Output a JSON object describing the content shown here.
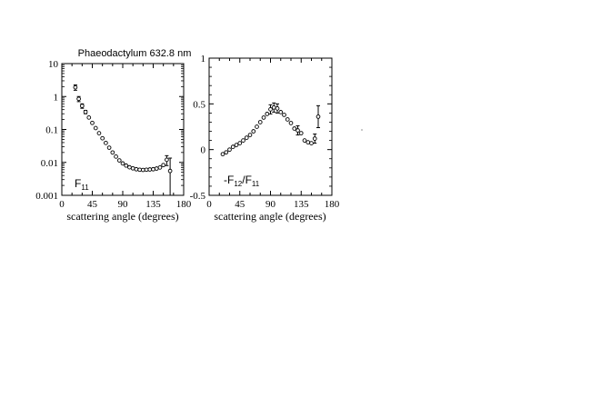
{
  "figure_title": "Phaeodactylum  632.8 nm",
  "chart_data": [
    {
      "type": "scatter",
      "panel_label": "F",
      "panel_label_sub": "11",
      "xlabel": "scattering angle (degrees)",
      "ylabel": "",
      "xlim": [
        0,
        180
      ],
      "ylim": [
        0.001,
        10
      ],
      "yscale": "log",
      "xticks": [
        0,
        45,
        90,
        135,
        180
      ],
      "xtick_labels": [
        "0",
        "45",
        "90",
        "135",
        "180"
      ],
      "yticks": [
        0.001,
        0.01,
        0.1,
        1,
        10
      ],
      "ytick_labels": [
        "0.001",
        "0.01",
        "0.1",
        "1",
        "10"
      ],
      "grid": false,
      "points": [
        {
          "x": 20,
          "y": 1.9,
          "err": 0.35
        },
        {
          "x": 25,
          "y": 0.85,
          "err": 0.15
        },
        {
          "x": 30,
          "y": 0.52,
          "err": 0.08
        },
        {
          "x": 35,
          "y": 0.34,
          "err": 0.04
        },
        {
          "x": 40,
          "y": 0.23
        },
        {
          "x": 45,
          "y": 0.158
        },
        {
          "x": 50,
          "y": 0.11
        },
        {
          "x": 55,
          "y": 0.077
        },
        {
          "x": 60,
          "y": 0.054
        },
        {
          "x": 65,
          "y": 0.039
        },
        {
          "x": 70,
          "y": 0.028
        },
        {
          "x": 75,
          "y": 0.02
        },
        {
          "x": 80,
          "y": 0.015
        },
        {
          "x": 85,
          "y": 0.0115
        },
        {
          "x": 90,
          "y": 0.0093
        },
        {
          "x": 95,
          "y": 0.008
        },
        {
          "x": 100,
          "y": 0.0071
        },
        {
          "x": 105,
          "y": 0.0066
        },
        {
          "x": 110,
          "y": 0.0062
        },
        {
          "x": 115,
          "y": 0.006
        },
        {
          "x": 120,
          "y": 0.0059
        },
        {
          "x": 125,
          "y": 0.006
        },
        {
          "x": 130,
          "y": 0.0061
        },
        {
          "x": 135,
          "y": 0.0062
        },
        {
          "x": 140,
          "y": 0.0065
        },
        {
          "x": 145,
          "y": 0.007
        },
        {
          "x": 150,
          "y": 0.0083
        },
        {
          "x": 155,
          "y": 0.012,
          "err": 0.004
        },
        {
          "x": 160,
          "y": 0.0055,
          "err": 0.008
        }
      ]
    },
    {
      "type": "scatter",
      "panel_label": "-F",
      "panel_label_sub": "12",
      "panel_label_tail": "/F",
      "panel_label_tail_sub": "11",
      "xlabel": "scattering angle (degrees)",
      "ylabel": "",
      "xlim": [
        0,
        180
      ],
      "ylim": [
        -0.5,
        1
      ],
      "yscale": "linear",
      "xticks": [
        0,
        45,
        90,
        135,
        180
      ],
      "xtick_labels": [
        "0",
        "45",
        "90",
        "135",
        "180"
      ],
      "yticks": [
        -0.5,
        0,
        0.5,
        1
      ],
      "ytick_labels": [
        "-0.5",
        "0",
        "0.5",
        "1"
      ],
      "grid": false,
      "points": [
        {
          "x": 20,
          "y": -0.05
        },
        {
          "x": 25,
          "y": -0.03
        },
        {
          "x": 30,
          "y": 0
        },
        {
          "x": 35,
          "y": 0.03
        },
        {
          "x": 40,
          "y": 0.05
        },
        {
          "x": 45,
          "y": 0.07
        },
        {
          "x": 50,
          "y": 0.1
        },
        {
          "x": 55,
          "y": 0.13
        },
        {
          "x": 60,
          "y": 0.16
        },
        {
          "x": 65,
          "y": 0.2
        },
        {
          "x": 70,
          "y": 0.25
        },
        {
          "x": 75,
          "y": 0.3
        },
        {
          "x": 80,
          "y": 0.35
        },
        {
          "x": 85,
          "y": 0.39
        },
        {
          "x": 90,
          "y": 0.44,
          "err": 0.05
        },
        {
          "x": 95,
          "y": 0.46,
          "err": 0.05
        },
        {
          "x": 100,
          "y": 0.45,
          "err": 0.05
        },
        {
          "x": 105,
          "y": 0.41
        },
        {
          "x": 110,
          "y": 0.38
        },
        {
          "x": 115,
          "y": 0.33
        },
        {
          "x": 120,
          "y": 0.29
        },
        {
          "x": 125,
          "y": 0.23
        },
        {
          "x": 130,
          "y": 0.21,
          "err": 0.05
        },
        {
          "x": 135,
          "y": 0.18
        },
        {
          "x": 140,
          "y": 0.1
        },
        {
          "x": 145,
          "y": 0.08
        },
        {
          "x": 150,
          "y": 0.07
        },
        {
          "x": 155,
          "y": 0.12,
          "err": 0.05
        },
        {
          "x": 160,
          "y": 0.36,
          "err": 0.12
        }
      ]
    }
  ]
}
